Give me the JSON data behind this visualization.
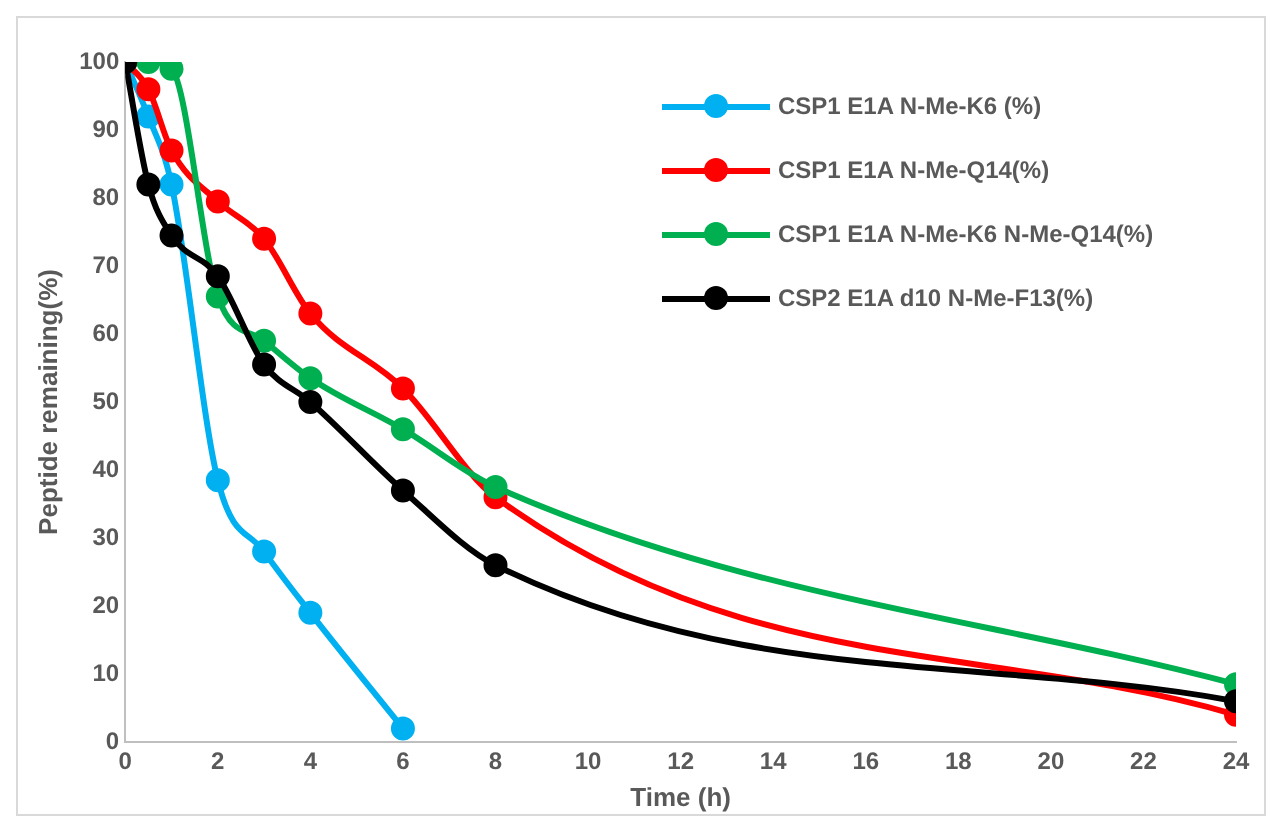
{
  "chart_data": {
    "type": "line",
    "xlabel": "Time (h)",
    "ylabel": "Peptide remaining(%)",
    "xlim": [
      0,
      24
    ],
    "xticks": [
      0,
      2,
      4,
      6,
      8,
      10,
      12,
      14,
      16,
      18,
      20,
      22,
      24
    ],
    "ylim": [
      0,
      100
    ],
    "yticks": [
      0,
      10,
      20,
      30,
      40,
      50,
      60,
      70,
      80,
      90,
      100
    ],
    "grid": false,
    "legend": "top right",
    "marker": "circle",
    "line_style": "solid",
    "series": [
      {
        "name": "CSP1 E1A N-Me-K6 (%)",
        "color": "#00b0f0",
        "x": [
          0,
          0.5,
          1,
          2,
          3,
          4,
          6
        ],
        "values": [
          100,
          92,
          82,
          38.5,
          28,
          19,
          2
        ]
      },
      {
        "name": "CSP1 E1A N-Me-Q14(%)",
        "color": "#ff0000",
        "x": [
          0,
          0.5,
          1,
          2,
          3,
          4,
          6,
          8,
          24
        ],
        "values": [
          100,
          96,
          87,
          79.5,
          74,
          63,
          52,
          36,
          4
        ]
      },
      {
        "name": "CSP1 E1A N-Me-K6 N-Me-Q14(%)",
        "color": "#00b050",
        "x": [
          0,
          0.5,
          1,
          2,
          3,
          4,
          6,
          8,
          24
        ],
        "values": [
          100,
          100,
          99,
          65.5,
          59,
          53.5,
          46,
          37.5,
          8.5
        ]
      },
      {
        "name": "CSP2 E1A d10 N-Me-F13(%)",
        "color": "#000000",
        "x": [
          0,
          0.5,
          1,
          2,
          3,
          4,
          6,
          8,
          24
        ],
        "values": [
          100,
          82,
          74.5,
          68.5,
          55.5,
          50,
          37,
          26,
          6
        ]
      }
    ]
  }
}
